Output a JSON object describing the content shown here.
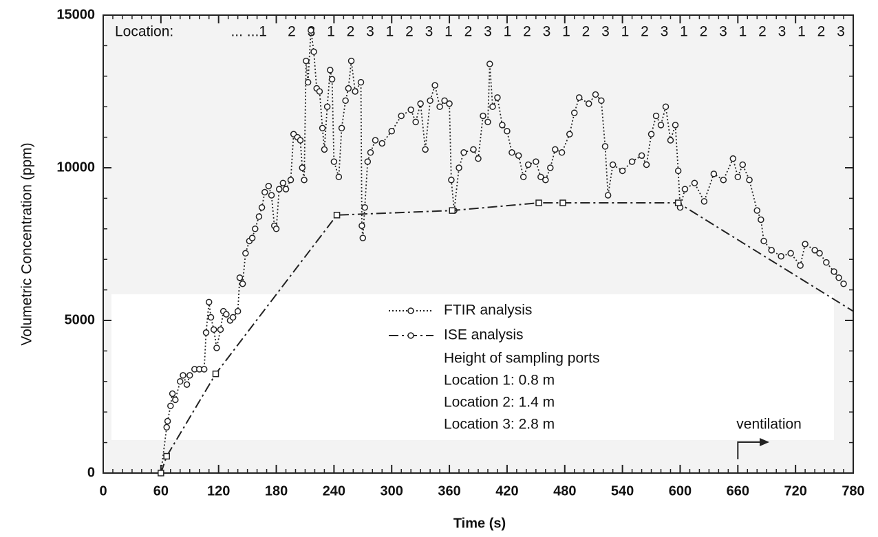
{
  "chart_data": {
    "type": "line",
    "xlabel": "Time (s)",
    "ylabel": "Volumetric Concentration (ppm)",
    "xlim": [
      0,
      780
    ],
    "ylim": [
      0,
      15000
    ],
    "xticks": [
      0,
      60,
      120,
      180,
      240,
      300,
      360,
      420,
      480,
      540,
      600,
      660,
      720,
      780
    ],
    "yticks": [
      0,
      5000,
      10000,
      15000
    ],
    "location_title": "Location:",
    "location_labels": [
      "... ...1",
      "2",
      "3",
      "1",
      "2",
      "3",
      "1",
      "2",
      "3",
      "1",
      "2",
      "3",
      "1",
      "2",
      "3",
      "1",
      "2",
      "3",
      "1",
      "2",
      "3",
      "1",
      "2",
      "3",
      "1",
      "2",
      "3",
      "1",
      "2",
      "3"
    ],
    "legend_notes": [
      "Height of sampling ports",
      "Location 1:  0.8  m",
      "Location 2:  1.4 m",
      "Location 3:  2.8 m"
    ],
    "annotation": {
      "text": "ventilation",
      "x": 660
    },
    "series": [
      {
        "name": "FTIR analysis",
        "color": "#222222",
        "marker": "circle",
        "style": "dotted",
        "x": [
          60,
          66,
          67,
          70,
          72,
          75,
          80,
          83,
          87,
          90,
          95,
          100,
          105,
          107,
          110,
          112,
          115,
          118,
          122,
          125,
          128,
          132,
          135,
          140,
          142,
          145,
          148,
          152,
          155,
          158,
          162,
          165,
          168,
          172,
          175,
          178,
          180,
          183,
          187,
          190,
          195,
          198,
          202,
          205,
          207,
          209,
          211,
          213,
          216,
          219,
          222,
          225,
          228,
          230,
          233,
          236,
          238,
          240,
          245,
          248,
          252,
          255,
          258,
          262,
          268,
          269,
          270,
          272,
          275,
          278,
          283,
          290,
          300,
          310,
          320,
          325,
          330,
          335,
          340,
          345,
          350,
          355,
          360,
          362,
          365,
          370,
          375,
          385,
          390,
          395,
          400,
          402,
          405,
          410,
          415,
          420,
          425,
          432,
          437,
          442,
          450,
          455,
          460,
          465,
          470,
          477,
          485,
          490,
          495,
          505,
          512,
          518,
          522,
          525,
          530,
          540,
          550,
          560,
          565,
          570,
          575,
          580,
          585,
          590,
          595,
          598,
          600,
          605,
          615,
          625,
          635,
          645,
          655,
          660,
          665,
          672,
          680,
          684,
          687,
          695,
          705,
          715,
          725,
          730,
          740,
          745,
          752,
          760,
          765,
          770
        ],
        "values": [
          0,
          1500,
          1700,
          2200,
          2600,
          2400,
          3000,
          3200,
          2900,
          3200,
          3400,
          3400,
          3400,
          4600,
          5600,
          5100,
          4700,
          4100,
          4700,
          5300,
          5200,
          5000,
          5100,
          5300,
          6400,
          6200,
          7200,
          7600,
          7700,
          8000,
          8400,
          8700,
          9200,
          9400,
          9100,
          8100,
          8000,
          9300,
          9500,
          9300,
          9600,
          11100,
          11000,
          10900,
          10000,
          9600,
          13500,
          12800,
          14500,
          13800,
          12600,
          12500,
          11300,
          10600,
          12000,
          13200,
          12900,
          10200,
          9700,
          11300,
          12200,
          12600,
          13500,
          12500,
          12800,
          8100,
          7700,
          8700,
          10200,
          10500,
          10900,
          10800,
          11200,
          11700,
          11900,
          11500,
          12100,
          10600,
          12200,
          12700,
          12000,
          12200,
          12100,
          9600,
          8600,
          10000,
          10500,
          10600,
          10300,
          11700,
          11500,
          13400,
          12000,
          12300,
          11400,
          11200,
          10500,
          10400,
          9700,
          10100,
          10200,
          9700,
          9600,
          10000,
          10600,
          10500,
          11100,
          11800,
          12300,
          12100,
          12400,
          12200,
          10700,
          9100,
          10100,
          9900,
          10200,
          10400,
          10100,
          11100,
          11700,
          11400,
          12000,
          10900,
          11400,
          9900,
          8700,
          9300,
          9500,
          8900,
          9800,
          9600,
          10300,
          9700,
          10100,
          9600,
          8600,
          8300,
          7600,
          7300,
          7100,
          7200,
          6800,
          7500,
          7300,
          7200,
          6900,
          6600,
          6400,
          6200
        ]
      },
      {
        "name": "ISE analysis",
        "color": "#222222",
        "marker": "square",
        "style": "dashdot",
        "x": [
          60,
          66,
          117,
          243,
          363,
          453,
          478,
          598,
          780
        ],
        "values": [
          0,
          550,
          3250,
          8450,
          8600,
          8850,
          8850,
          8850,
          5300
        ],
        "markers": [
          true,
          true,
          true,
          true,
          true,
          true,
          true,
          true,
          false
        ]
      }
    ]
  }
}
